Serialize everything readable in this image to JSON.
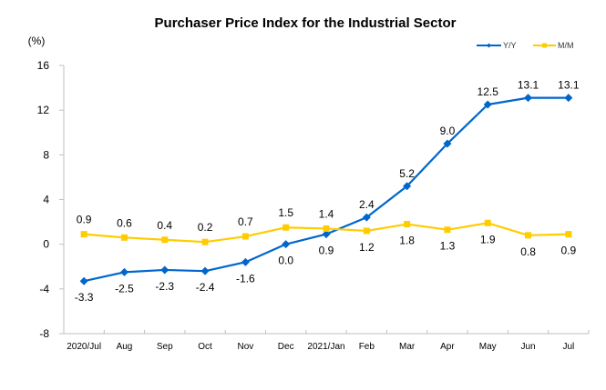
{
  "chart_data": {
    "type": "line",
    "title": "Purchaser Price Index for the Industrial  Sector",
    "ylabel": "(%)",
    "xlabel": "",
    "ylim": [
      -8,
      16
    ],
    "yticks": [
      16,
      12,
      8,
      4,
      0,
      -4,
      -8
    ],
    "grid": false,
    "legend_position": "top-right",
    "categories": [
      "2020/Jul",
      "Aug",
      "Sep",
      "Oct",
      "Nov",
      "Dec",
      "2021/Jan",
      "Feb",
      "Mar",
      "Apr",
      "May",
      "Jun",
      "Jul"
    ],
    "series": [
      {
        "name": "Y/Y",
        "color": "#0066CC",
        "marker": "diamond",
        "values": [
          -3.3,
          -2.5,
          -2.3,
          -2.4,
          -1.6,
          0.0,
          0.9,
          2.4,
          5.2,
          9.0,
          12.5,
          13.1,
          13.1
        ],
        "labels": [
          "-3.3",
          "-2.5",
          "-2.3",
          "-2.4",
          "-1.6",
          "0.0",
          "0.9",
          "2.4",
          "5.2",
          "9.0",
          "12.5",
          "13.1",
          "13.1"
        ]
      },
      {
        "name": "M/M",
        "color": "#FFCC00",
        "marker": "square",
        "values": [
          0.9,
          0.6,
          0.4,
          0.2,
          0.7,
          1.5,
          1.4,
          1.2,
          1.8,
          1.3,
          1.9,
          0.8,
          0.9
        ],
        "labels": [
          "0.9",
          "0.6",
          "0.4",
          "0.2",
          "0.7",
          "1.5",
          "1.4",
          "1.2",
          "1.8",
          "1.3",
          "1.9",
          "0.8",
          "0.9"
        ]
      }
    ]
  }
}
